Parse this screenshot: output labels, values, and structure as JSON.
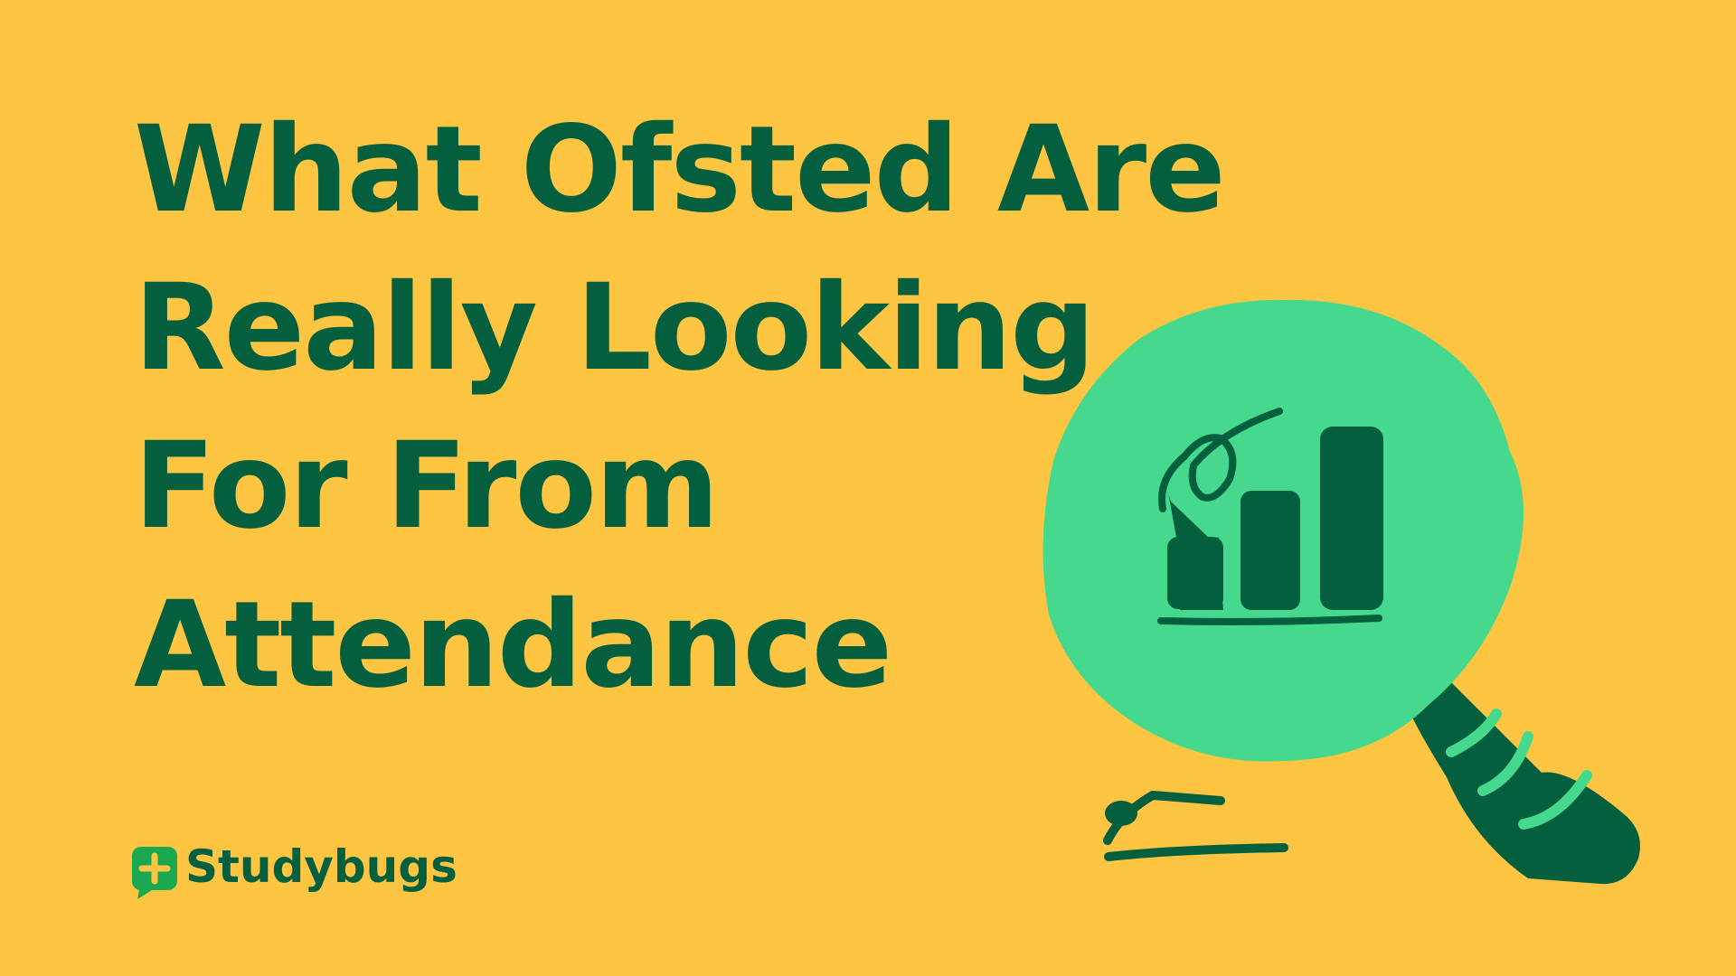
{
  "title": {
    "lines": [
      "What Ofsted Are",
      "Really Looking",
      "For From",
      "Attendance"
    ]
  },
  "logo": {
    "text": "Studybugs"
  }
}
